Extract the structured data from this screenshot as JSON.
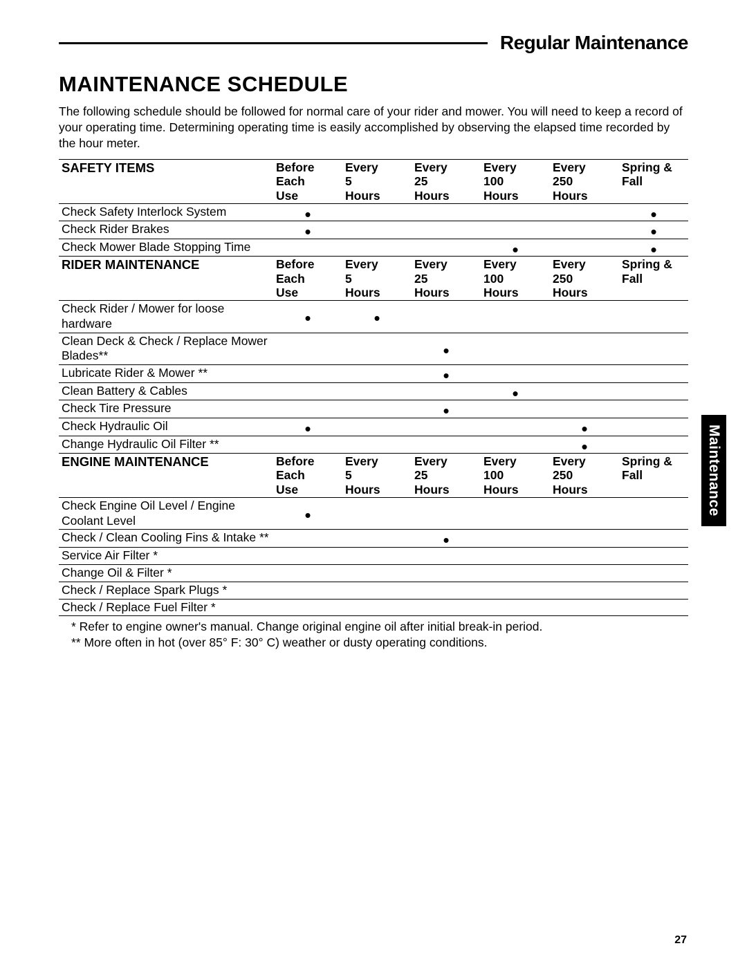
{
  "header": {
    "section_title": "Regular Maintenance",
    "page_title": "MAINTENANCE SCHEDULE",
    "intro": "The following schedule should be followed for normal care of your rider and mower. You will need to keep a record of your operating time. Determining operating time is easily accomplished by observing the elapsed time recorded by the hour meter."
  },
  "columns": [
    "Before Each Use",
    "Every 5 Hours",
    "Every 25 Hours",
    "Every 100 Hours",
    "Every 250 Hours",
    "Spring & Fall"
  ],
  "col_header_lines": {
    "c1a": "Before",
    "c1b": "Each",
    "c1c": "Use",
    "c2a": "Every",
    "c2b": "5",
    "c2c": "Hours",
    "c3a": "Every",
    "c3b": "25",
    "c3c": "Hours",
    "c4a": "Every",
    "c4b": "100",
    "c4c": "Hours",
    "c5a": "Every",
    "c5b": "250",
    "c5c": "Hours",
    "c6a": "Spring &",
    "c6b": "Fall"
  },
  "sections": {
    "safety": {
      "title": "SAFETY ITEMS",
      "rows": [
        {
          "label": "Check Safety Interlock System",
          "marks": [
            true,
            false,
            false,
            false,
            false,
            true
          ]
        },
        {
          "label": "Check Rider Brakes",
          "marks": [
            true,
            false,
            false,
            false,
            false,
            true
          ]
        },
        {
          "label": "Check Mower Blade Stopping Time",
          "marks": [
            false,
            false,
            false,
            true,
            false,
            true
          ]
        }
      ]
    },
    "rider": {
      "title": "RIDER MAINTENANCE",
      "rows": [
        {
          "label": "Check Rider / Mower for loose hardware",
          "marks": [
            true,
            true,
            false,
            false,
            false,
            false
          ]
        },
        {
          "label": "Clean Deck & Check / Replace Mower Blades**",
          "marks": [
            false,
            false,
            true,
            false,
            false,
            false
          ]
        },
        {
          "label": "Lubricate Rider & Mower **",
          "marks": [
            false,
            false,
            true,
            false,
            false,
            false
          ]
        },
        {
          "label": "Clean Battery & Cables",
          "marks": [
            false,
            false,
            false,
            true,
            false,
            false
          ]
        },
        {
          "label": "Check Tire Pressure",
          "marks": [
            false,
            false,
            true,
            false,
            false,
            false
          ]
        },
        {
          "label": "Check Hydraulic Oil",
          "marks": [
            true,
            false,
            false,
            false,
            true,
            false
          ]
        },
        {
          "label": "Change Hydraulic Oil Filter **",
          "marks": [
            false,
            false,
            false,
            false,
            true,
            false
          ]
        }
      ]
    },
    "engine": {
      "title": "ENGINE MAINTENANCE",
      "rows": [
        {
          "label": "Check Engine Oil Level / Engine Coolant Level",
          "marks": [
            true,
            false,
            false,
            false,
            false,
            false
          ]
        },
        {
          "label": "Check / Clean Cooling Fins & Intake **",
          "marks": [
            false,
            false,
            true,
            false,
            false,
            false
          ]
        },
        {
          "label": "Service Air Filter *",
          "marks": [
            false,
            false,
            false,
            false,
            false,
            false
          ]
        },
        {
          "label": "Change Oil & Filter *",
          "marks": [
            false,
            false,
            false,
            false,
            false,
            false
          ]
        },
        {
          "label": "Check / Replace Spark Plugs *",
          "marks": [
            false,
            false,
            false,
            false,
            false,
            false
          ]
        },
        {
          "label": "Check / Replace Fuel Filter *",
          "marks": [
            false,
            false,
            false,
            false,
            false,
            false
          ]
        }
      ]
    }
  },
  "footnotes": {
    "fn1": "* Refer to engine owner's manual.  Change original engine oil after initial break-in period.",
    "fn2": "** More often in hot (over 85° F: 30° C) weather or dusty operating conditions."
  },
  "side_tab": "Maintenance",
  "page_number": "27",
  "style": {
    "bullet_char": "•",
    "text_color": "#000000",
    "bg_color": "#ffffff",
    "tab_bg": "#000000",
    "tab_fg": "#ffffff"
  }
}
